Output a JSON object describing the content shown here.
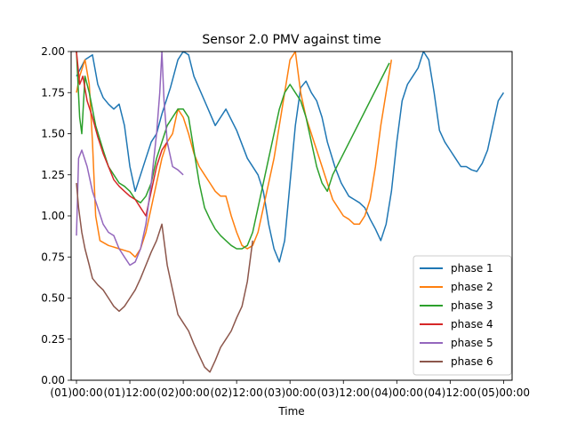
{
  "chart_data": {
    "type": "line",
    "title": "Sensor 2.0 PMV against  time",
    "xlabel": "Time",
    "ylabel": "",
    "xlim": [
      -0.05,
      4.08
    ],
    "ylim": [
      0.0,
      2.0
    ],
    "x_unit": "days from (01)00:00",
    "x_ticks": [
      {
        "value": 0.0,
        "label": "(01)00:00"
      },
      {
        "value": 0.5,
        "label": "(01)12:00"
      },
      {
        "value": 1.0,
        "label": "(02)00:00"
      },
      {
        "value": 1.5,
        "label": "(02)12:00"
      },
      {
        "value": 2.0,
        "label": "(03)00:00"
      },
      {
        "value": 2.5,
        "label": "(03)12:00"
      },
      {
        "value": 3.0,
        "label": "(04)00:00"
      },
      {
        "value": 3.5,
        "label": "(04)12:00"
      },
      {
        "value": 4.0,
        "label": "(05)00:00"
      }
    ],
    "y_ticks": [
      {
        "value": 0.0,
        "label": "0.00"
      },
      {
        "value": 0.25,
        "label": "0.25"
      },
      {
        "value": 0.5,
        "label": "0.50"
      },
      {
        "value": 0.75,
        "label": "0.75"
      },
      {
        "value": 1.0,
        "label": "1.00"
      },
      {
        "value": 1.25,
        "label": "1.25"
      },
      {
        "value": 1.5,
        "label": "1.50"
      },
      {
        "value": 1.75,
        "label": "1.75"
      },
      {
        "value": 2.0,
        "label": "2.00"
      }
    ],
    "grid": false,
    "legend_position": "lower right",
    "series": [
      {
        "name": "phase 1",
        "color": "#1f77b4",
        "points": [
          [
            0.0,
            1.85
          ],
          [
            0.08,
            1.95
          ],
          [
            0.15,
            1.98
          ],
          [
            0.2,
            1.8
          ],
          [
            0.25,
            1.72
          ],
          [
            0.3,
            1.68
          ],
          [
            0.35,
            1.65
          ],
          [
            0.4,
            1.68
          ],
          [
            0.45,
            1.55
          ],
          [
            0.5,
            1.3
          ],
          [
            0.55,
            1.15
          ],
          [
            0.6,
            1.25
          ],
          [
            0.65,
            1.35
          ],
          [
            0.7,
            1.45
          ],
          [
            0.75,
            1.5
          ],
          [
            0.8,
            1.62
          ],
          [
            0.88,
            1.78
          ],
          [
            0.95,
            1.95
          ],
          [
            1.0,
            2.0
          ],
          [
            1.05,
            1.98
          ],
          [
            1.1,
            1.85
          ],
          [
            1.2,
            1.7
          ],
          [
            1.3,
            1.55
          ],
          [
            1.4,
            1.65
          ],
          [
            1.5,
            1.52
          ],
          [
            1.6,
            1.35
          ],
          [
            1.7,
            1.25
          ],
          [
            1.75,
            1.15
          ],
          [
            1.8,
            0.95
          ],
          [
            1.85,
            0.8
          ],
          [
            1.9,
            0.72
          ],
          [
            1.95,
            0.85
          ],
          [
            2.0,
            1.2
          ],
          [
            2.05,
            1.55
          ],
          [
            2.1,
            1.78
          ],
          [
            2.15,
            1.82
          ],
          [
            2.2,
            1.75
          ],
          [
            2.25,
            1.7
          ],
          [
            2.3,
            1.6
          ],
          [
            2.35,
            1.45
          ],
          [
            2.42,
            1.3
          ],
          [
            2.48,
            1.2
          ],
          [
            2.55,
            1.12
          ],
          [
            2.6,
            1.1
          ],
          [
            2.65,
            1.08
          ],
          [
            2.7,
            1.05
          ],
          [
            2.75,
            0.98
          ],
          [
            2.8,
            0.92
          ],
          [
            2.85,
            0.85
          ],
          [
            2.9,
            0.95
          ],
          [
            2.95,
            1.15
          ],
          [
            3.0,
            1.45
          ],
          [
            3.05,
            1.7
          ],
          [
            3.1,
            1.8
          ],
          [
            3.15,
            1.85
          ],
          [
            3.2,
            1.9
          ],
          [
            3.25,
            2.0
          ],
          [
            3.3,
            1.95
          ],
          [
            3.35,
            1.75
          ],
          [
            3.4,
            1.52
          ],
          [
            3.45,
            1.45
          ],
          [
            3.5,
            1.4
          ],
          [
            3.55,
            1.35
          ],
          [
            3.6,
            1.3
          ],
          [
            3.65,
            1.3
          ],
          [
            3.7,
            1.28
          ],
          [
            3.75,
            1.27
          ],
          [
            3.8,
            1.32
          ],
          [
            3.85,
            1.4
          ],
          [
            3.9,
            1.55
          ],
          [
            3.95,
            1.7
          ],
          [
            4.0,
            1.75
          ]
        ]
      },
      {
        "name": "phase 2",
        "color": "#ff7f0e",
        "points": [
          [
            0.0,
            1.75
          ],
          [
            0.03,
            1.85
          ],
          [
            0.08,
            1.95
          ],
          [
            0.12,
            1.8
          ],
          [
            0.15,
            1.45
          ],
          [
            0.18,
            1.0
          ],
          [
            0.22,
            0.85
          ],
          [
            0.3,
            0.82
          ],
          [
            0.4,
            0.8
          ],
          [
            0.5,
            0.78
          ],
          [
            0.55,
            0.75
          ],
          [
            0.6,
            0.8
          ],
          [
            0.65,
            0.9
          ],
          [
            0.7,
            1.05
          ],
          [
            0.75,
            1.2
          ],
          [
            0.8,
            1.35
          ],
          [
            0.85,
            1.45
          ],
          [
            0.9,
            1.5
          ],
          [
            0.95,
            1.65
          ],
          [
            1.0,
            1.6
          ],
          [
            1.05,
            1.5
          ],
          [
            1.1,
            1.38
          ],
          [
            1.15,
            1.3
          ],
          [
            1.2,
            1.25
          ],
          [
            1.25,
            1.2
          ],
          [
            1.3,
            1.15
          ],
          [
            1.35,
            1.12
          ],
          [
            1.4,
            1.12
          ],
          [
            1.45,
            1.0
          ],
          [
            1.5,
            0.9
          ],
          [
            1.55,
            0.82
          ],
          [
            1.6,
            0.8
          ],
          [
            1.65,
            0.82
          ],
          [
            1.7,
            0.9
          ],
          [
            1.75,
            1.05
          ],
          [
            1.8,
            1.2
          ],
          [
            1.85,
            1.35
          ],
          [
            1.9,
            1.55
          ],
          [
            1.95,
            1.75
          ],
          [
            2.0,
            1.95
          ],
          [
            2.05,
            2.0
          ],
          [
            2.1,
            1.75
          ],
          [
            2.15,
            1.6
          ],
          [
            2.2,
            1.5
          ],
          [
            2.25,
            1.4
          ],
          [
            2.3,
            1.3
          ],
          [
            2.35,
            1.2
          ],
          [
            2.4,
            1.1
          ],
          [
            2.45,
            1.05
          ],
          [
            2.5,
            1.0
          ],
          [
            2.55,
            0.98
          ],
          [
            2.6,
            0.95
          ],
          [
            2.65,
            0.95
          ],
          [
            2.7,
            1.0
          ],
          [
            2.75,
            1.1
          ],
          [
            2.8,
            1.3
          ],
          [
            2.85,
            1.55
          ],
          [
            2.9,
            1.75
          ],
          [
            2.95,
            1.95
          ]
        ]
      },
      {
        "name": "phase 3",
        "color": "#2ca02c",
        "points": [
          [
            0.0,
            2.0
          ],
          [
            0.03,
            1.6
          ],
          [
            0.05,
            1.5
          ],
          [
            0.08,
            1.85
          ],
          [
            0.12,
            1.75
          ],
          [
            0.18,
            1.55
          ],
          [
            0.25,
            1.4
          ],
          [
            0.3,
            1.3
          ],
          [
            0.35,
            1.25
          ],
          [
            0.4,
            1.2
          ],
          [
            0.45,
            1.18
          ],
          [
            0.5,
            1.15
          ],
          [
            0.55,
            1.1
          ],
          [
            0.6,
            1.08
          ],
          [
            0.65,
            1.12
          ],
          [
            0.7,
            1.2
          ],
          [
            0.75,
            1.35
          ],
          [
            0.8,
            1.45
          ],
          [
            0.85,
            1.55
          ],
          [
            0.9,
            1.6
          ],
          [
            0.95,
            1.65
          ],
          [
            1.0,
            1.65
          ],
          [
            1.05,
            1.6
          ],
          [
            1.1,
            1.4
          ],
          [
            1.15,
            1.2
          ],
          [
            1.2,
            1.05
          ],
          [
            1.25,
            0.98
          ],
          [
            1.3,
            0.92
          ],
          [
            1.35,
            0.88
          ],
          [
            1.4,
            0.85
          ],
          [
            1.45,
            0.82
          ],
          [
            1.5,
            0.8
          ],
          [
            1.55,
            0.8
          ],
          [
            1.6,
            0.82
          ],
          [
            1.65,
            0.9
          ],
          [
            1.7,
            1.05
          ],
          [
            1.75,
            1.2
          ],
          [
            1.8,
            1.35
          ],
          [
            1.85,
            1.5
          ],
          [
            1.9,
            1.65
          ],
          [
            1.95,
            1.75
          ],
          [
            2.0,
            1.8
          ],
          [
            2.05,
            1.75
          ],
          [
            2.1,
            1.7
          ],
          [
            2.15,
            1.6
          ],
          [
            2.2,
            1.45
          ],
          [
            2.25,
            1.3
          ],
          [
            2.3,
            1.2
          ],
          [
            2.35,
            1.15
          ],
          [
            2.4,
            1.25
          ],
          [
            2.93,
            1.93
          ]
        ]
      },
      {
        "name": "phase 4",
        "color": "#d62728",
        "points": [
          [
            0.0,
            2.0
          ],
          [
            0.03,
            1.8
          ],
          [
            0.06,
            1.85
          ],
          [
            0.1,
            1.7
          ],
          [
            0.15,
            1.6
          ],
          [
            0.2,
            1.48
          ],
          [
            0.25,
            1.38
          ],
          [
            0.3,
            1.3
          ],
          [
            0.35,
            1.22
          ],
          [
            0.4,
            1.18
          ],
          [
            0.45,
            1.15
          ],
          [
            0.5,
            1.12
          ],
          [
            0.55,
            1.1
          ],
          [
            0.6,
            1.05
          ],
          [
            0.65,
            1.0
          ],
          [
            0.7,
            1.15
          ],
          [
            0.75,
            1.3
          ],
          [
            0.8,
            1.4
          ],
          [
            0.85,
            1.45
          ]
        ]
      },
      {
        "name": "phase 5",
        "color": "#9467bd",
        "points": [
          [
            0.0,
            0.88
          ],
          [
            0.02,
            1.35
          ],
          [
            0.05,
            1.4
          ],
          [
            0.1,
            1.3
          ],
          [
            0.15,
            1.15
          ],
          [
            0.2,
            1.05
          ],
          [
            0.25,
            0.95
          ],
          [
            0.3,
            0.9
          ],
          [
            0.35,
            0.88
          ],
          [
            0.4,
            0.8
          ],
          [
            0.45,
            0.75
          ],
          [
            0.5,
            0.7
          ],
          [
            0.55,
            0.72
          ],
          [
            0.6,
            0.8
          ],
          [
            0.65,
            0.95
          ],
          [
            0.7,
            1.2
          ],
          [
            0.75,
            1.5
          ],
          [
            0.78,
            1.75
          ],
          [
            0.8,
            2.0
          ],
          [
            0.82,
            1.7
          ],
          [
            0.85,
            1.45
          ],
          [
            0.9,
            1.3
          ],
          [
            0.95,
            1.28
          ],
          [
            1.0,
            1.25
          ]
        ]
      },
      {
        "name": "phase 6",
        "color": "#8c564b",
        "points": [
          [
            0.0,
            1.2
          ],
          [
            0.02,
            1.05
          ],
          [
            0.05,
            0.9
          ],
          [
            0.08,
            0.8
          ],
          [
            0.12,
            0.7
          ],
          [
            0.15,
            0.62
          ],
          [
            0.2,
            0.58
          ],
          [
            0.25,
            0.55
          ],
          [
            0.3,
            0.5
          ],
          [
            0.35,
            0.45
          ],
          [
            0.4,
            0.42
          ],
          [
            0.45,
            0.45
          ],
          [
            0.5,
            0.5
          ],
          [
            0.55,
            0.55
          ],
          [
            0.6,
            0.62
          ],
          [
            0.65,
            0.7
          ],
          [
            0.7,
            0.78
          ],
          [
            0.75,
            0.85
          ],
          [
            0.8,
            0.95
          ],
          [
            0.85,
            0.7
          ],
          [
            0.9,
            0.55
          ],
          [
            0.95,
            0.4
          ],
          [
            1.0,
            0.35
          ],
          [
            1.05,
            0.3
          ],
          [
            1.1,
            0.22
          ],
          [
            1.15,
            0.15
          ],
          [
            1.2,
            0.08
          ],
          [
            1.25,
            0.05
          ],
          [
            1.3,
            0.12
          ],
          [
            1.35,
            0.2
          ],
          [
            1.4,
            0.25
          ],
          [
            1.45,
            0.3
          ],
          [
            1.5,
            0.38
          ],
          [
            1.55,
            0.45
          ],
          [
            1.6,
            0.6
          ],
          [
            1.63,
            0.75
          ],
          [
            1.65,
            0.85
          ]
        ]
      }
    ]
  }
}
